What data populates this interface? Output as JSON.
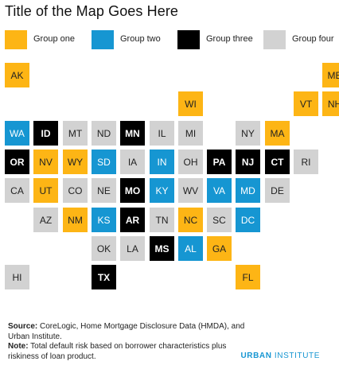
{
  "title": "Title of the Map Goes Here",
  "colors": {
    "group_one": "#fdb515",
    "group_two": "#1696d2",
    "group_three": "#000000",
    "group_four": "#d2d2d2",
    "brand": "#1696d2"
  },
  "legend": [
    {
      "label": "Group one",
      "group": "g1"
    },
    {
      "label": "Group two",
      "group": "g2"
    },
    {
      "label": "Group three",
      "group": "g3"
    },
    {
      "label": "Group four",
      "group": "g4"
    }
  ],
  "states": [
    {
      "abbr": "AK",
      "group": "g1",
      "row": 0,
      "col": 0
    },
    {
      "abbr": "ME",
      "group": "g1",
      "row": 0,
      "col": 11
    },
    {
      "abbr": "WI",
      "group": "g1",
      "row": 1,
      "col": 6
    },
    {
      "abbr": "VT",
      "group": "g1",
      "row": 1,
      "col": 10
    },
    {
      "abbr": "NH",
      "group": "g1",
      "row": 1,
      "col": 11
    },
    {
      "abbr": "WA",
      "group": "g2",
      "row": 2,
      "col": 0
    },
    {
      "abbr": "ID",
      "group": "g3",
      "row": 2,
      "col": 1
    },
    {
      "abbr": "MT",
      "group": "g4",
      "row": 2,
      "col": 2
    },
    {
      "abbr": "ND",
      "group": "g4",
      "row": 2,
      "col": 3
    },
    {
      "abbr": "MN",
      "group": "g3",
      "row": 2,
      "col": 4
    },
    {
      "abbr": "IL",
      "group": "g4",
      "row": 2,
      "col": 5
    },
    {
      "abbr": "MI",
      "group": "g4",
      "row": 2,
      "col": 6
    },
    {
      "abbr": "NY",
      "group": "g4",
      "row": 2,
      "col": 8
    },
    {
      "abbr": "MA",
      "group": "g1",
      "row": 2,
      "col": 9
    },
    {
      "abbr": "OR",
      "group": "g3",
      "row": 3,
      "col": 0
    },
    {
      "abbr": "NV",
      "group": "g1",
      "row": 3,
      "col": 1
    },
    {
      "abbr": "WY",
      "group": "g1",
      "row": 3,
      "col": 2
    },
    {
      "abbr": "SD",
      "group": "g2",
      "row": 3,
      "col": 3
    },
    {
      "abbr": "IA",
      "group": "g4",
      "row": 3,
      "col": 4
    },
    {
      "abbr": "IN",
      "group": "g2",
      "row": 3,
      "col": 5
    },
    {
      "abbr": "OH",
      "group": "g4",
      "row": 3,
      "col": 6
    },
    {
      "abbr": "PA",
      "group": "g3",
      "row": 3,
      "col": 7
    },
    {
      "abbr": "NJ",
      "group": "g3",
      "row": 3,
      "col": 8
    },
    {
      "abbr": "CT",
      "group": "g3",
      "row": 3,
      "col": 9
    },
    {
      "abbr": "RI",
      "group": "g4",
      "row": 3,
      "col": 10
    },
    {
      "abbr": "CA",
      "group": "g4",
      "row": 4,
      "col": 0
    },
    {
      "abbr": "UT",
      "group": "g1",
      "row": 4,
      "col": 1
    },
    {
      "abbr": "CO",
      "group": "g4",
      "row": 4,
      "col": 2
    },
    {
      "abbr": "NE",
      "group": "g4",
      "row": 4,
      "col": 3
    },
    {
      "abbr": "MO",
      "group": "g3",
      "row": 4,
      "col": 4
    },
    {
      "abbr": "KY",
      "group": "g2",
      "row": 4,
      "col": 5
    },
    {
      "abbr": "WV",
      "group": "g4",
      "row": 4,
      "col": 6
    },
    {
      "abbr": "VA",
      "group": "g2",
      "row": 4,
      "col": 7
    },
    {
      "abbr": "MD",
      "group": "g2",
      "row": 4,
      "col": 8
    },
    {
      "abbr": "DE",
      "group": "g4",
      "row": 4,
      "col": 9
    },
    {
      "abbr": "AZ",
      "group": "g4",
      "row": 5,
      "col": 1
    },
    {
      "abbr": "NM",
      "group": "g1",
      "row": 5,
      "col": 2
    },
    {
      "abbr": "KS",
      "group": "g2",
      "row": 5,
      "col": 3
    },
    {
      "abbr": "AR",
      "group": "g3",
      "row": 5,
      "col": 4
    },
    {
      "abbr": "TN",
      "group": "g4",
      "row": 5,
      "col": 5
    },
    {
      "abbr": "NC",
      "group": "g1",
      "row": 5,
      "col": 6
    },
    {
      "abbr": "SC",
      "group": "g4",
      "row": 5,
      "col": 7
    },
    {
      "abbr": "DC",
      "group": "g2",
      "row": 5,
      "col": 8
    },
    {
      "abbr": "OK",
      "group": "g4",
      "row": 6,
      "col": 3
    },
    {
      "abbr": "LA",
      "group": "g4",
      "row": 6,
      "col": 4
    },
    {
      "abbr": "MS",
      "group": "g3",
      "row": 6,
      "col": 5
    },
    {
      "abbr": "AL",
      "group": "g2",
      "row": 6,
      "col": 6
    },
    {
      "abbr": "GA",
      "group": "g1",
      "row": 6,
      "col": 7
    },
    {
      "abbr": "HI",
      "group": "g4",
      "row": 7,
      "col": 0
    },
    {
      "abbr": "TX",
      "group": "g3",
      "row": 7,
      "col": 3
    },
    {
      "abbr": "FL",
      "group": "g1",
      "row": 7,
      "col": 8
    }
  ],
  "source": {
    "source_label": "Source:",
    "source_text": " CoreLogic, Home Mortgage Disclosure Data (HMDA), and Urban Institute.",
    "note_label": "Note:",
    "note_text": " Total default risk based on borrower characteristics plus riskiness of loan product."
  },
  "brand": {
    "part1": "URBAN",
    "part2": " INSTITUTE"
  }
}
